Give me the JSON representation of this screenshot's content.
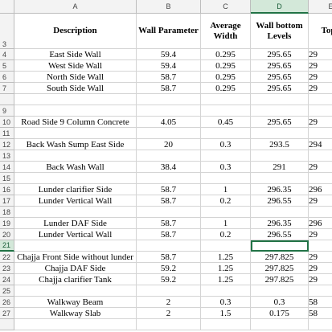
{
  "column_letters": [
    "A",
    "B",
    "C",
    "D",
    "E"
  ],
  "header_row": {
    "n": 3,
    "cells": [
      "Description",
      "Wall Parameter",
      "Average Width",
      "Wall bottom Levels",
      "Top l"
    ]
  },
  "rows": [
    {
      "n": 4,
      "cells": [
        "East Side Wall",
        "59.4",
        "0.295",
        "295.65",
        "29"
      ]
    },
    {
      "n": 5,
      "cells": [
        "West Side Wall",
        "59.4",
        "0.295",
        "295.65",
        "29"
      ]
    },
    {
      "n": 6,
      "cells": [
        "North Side Wall",
        "58.7",
        "0.295",
        "295.65",
        "29"
      ]
    },
    {
      "n": 7,
      "cells": [
        "South Side Wall",
        "58.7",
        "0.295",
        "295.65",
        "29"
      ]
    },
    {
      "n": 9
    },
    {
      "n": 10,
      "cells": [
        "Road Side 9 Column Concrete",
        "4.05",
        "0.45",
        "295.65",
        "29"
      ]
    },
    {
      "n": 11
    },
    {
      "n": 12,
      "cells": [
        "Back Wash Sump East Side",
        "20",
        "0.3",
        "293.5",
        "294"
      ]
    },
    {
      "n": 13
    },
    {
      "n": 14,
      "cells": [
        "Back Wash Wall",
        "38.4",
        "0.3",
        "291",
        "29"
      ]
    },
    {
      "n": 15
    },
    {
      "n": 16,
      "cells": [
        "Lunder clarifier Side",
        "58.7",
        "1",
        "296.35",
        "296"
      ]
    },
    {
      "n": 17,
      "cells": [
        "Lunder Vertical Wall",
        "58.7",
        "0.2",
        "296.55",
        "29"
      ]
    },
    {
      "n": 18
    },
    {
      "n": 19,
      "cells": [
        "Lunder DAF Side",
        "58.7",
        "1",
        "296.35",
        "296"
      ]
    },
    {
      "n": 20,
      "cells": [
        "Lunder Vertical Wall",
        "58.7",
        "0.2",
        "296.55",
        "29"
      ]
    },
    {
      "n": 21
    },
    {
      "n": 22,
      "cells": [
        "Chajja Front Side without lunder",
        "58.7",
        "1.25",
        "297.825",
        "29"
      ]
    },
    {
      "n": 23,
      "cells": [
        "Chajja DAF Side",
        "59.2",
        "1.25",
        "297.825",
        "29"
      ]
    },
    {
      "n": 24,
      "cells": [
        "Chajja clarifier Tank",
        "59.2",
        "1.25",
        "297.825",
        "29"
      ]
    },
    {
      "n": 25
    },
    {
      "n": 26,
      "cells": [
        "Walkway Beam",
        "2",
        "0.3",
        "0.3",
        "58"
      ]
    },
    {
      "n": 27,
      "cells": [
        "Walkway Slab",
        "2",
        "1.5",
        "0.175",
        "58"
      ]
    }
  ]
}
